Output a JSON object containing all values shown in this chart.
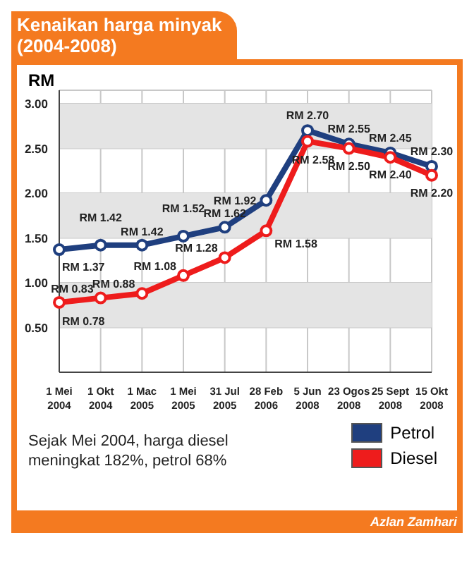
{
  "chart_data": {
    "type": "line",
    "title": "Kenaikan harga minyak (2004-2008)",
    "ylabel": "RM",
    "categories": [
      "1 Mei 2004",
      "1 Okt 2004",
      "1 Mac 2005",
      "1 Mei 2005",
      "31 Jul 2005",
      "28 Feb 2006",
      "5 Jun 2008",
      "23 Ogos 2008",
      "25 Sept 2008",
      "15 Okt 2008"
    ],
    "series": [
      {
        "name": "Petrol",
        "color": "#1f3f7f",
        "values": [
          1.37,
          1.42,
          1.42,
          1.52,
          1.62,
          1.92,
          2.7,
          2.55,
          2.45,
          2.3
        ],
        "value_labels": [
          "RM 1.37",
          "RM 1.42",
          "RM 1.42",
          "RM 1.52",
          "RM 1.62",
          "RM 1.92",
          "RM 2.70",
          "RM 2.55",
          "RM 2.45",
          "RM 2.30"
        ]
      },
      {
        "name": "Diesel",
        "color": "#ee1c1c",
        "values": [
          0.78,
          0.83,
          0.88,
          1.08,
          1.28,
          1.58,
          2.58,
          2.5,
          2.4,
          2.2
        ],
        "value_labels": [
          "RM 0.78",
          "RM 0.83",
          "RM 0.88",
          "RM 1.08",
          "RM 1.28",
          "RM 1.58",
          "RM 2.58",
          "RM 2.50",
          "RM 2.40",
          "RM 2.20"
        ]
      }
    ],
    "ylim": [
      0,
      3.15
    ],
    "yticks": [
      {
        "value": 0.5,
        "label": "0.50"
      },
      {
        "value": 1,
        "label": "1.00"
      },
      {
        "value": 1.5,
        "label": "1.50"
      },
      {
        "value": 2,
        "label": "2.00"
      },
      {
        "value": 2.5,
        "label": "2.50"
      },
      {
        "value": 3,
        "label": "3.00"
      }
    ],
    "grid": true,
    "marker": "circle",
    "line_style": "solid",
    "legend": "bottom right",
    "annotations": [
      "Sejak Mei 2004, harga diesel meningkat 182%, petrol 68%",
      "Azlan Zamhari"
    ]
  }
}
